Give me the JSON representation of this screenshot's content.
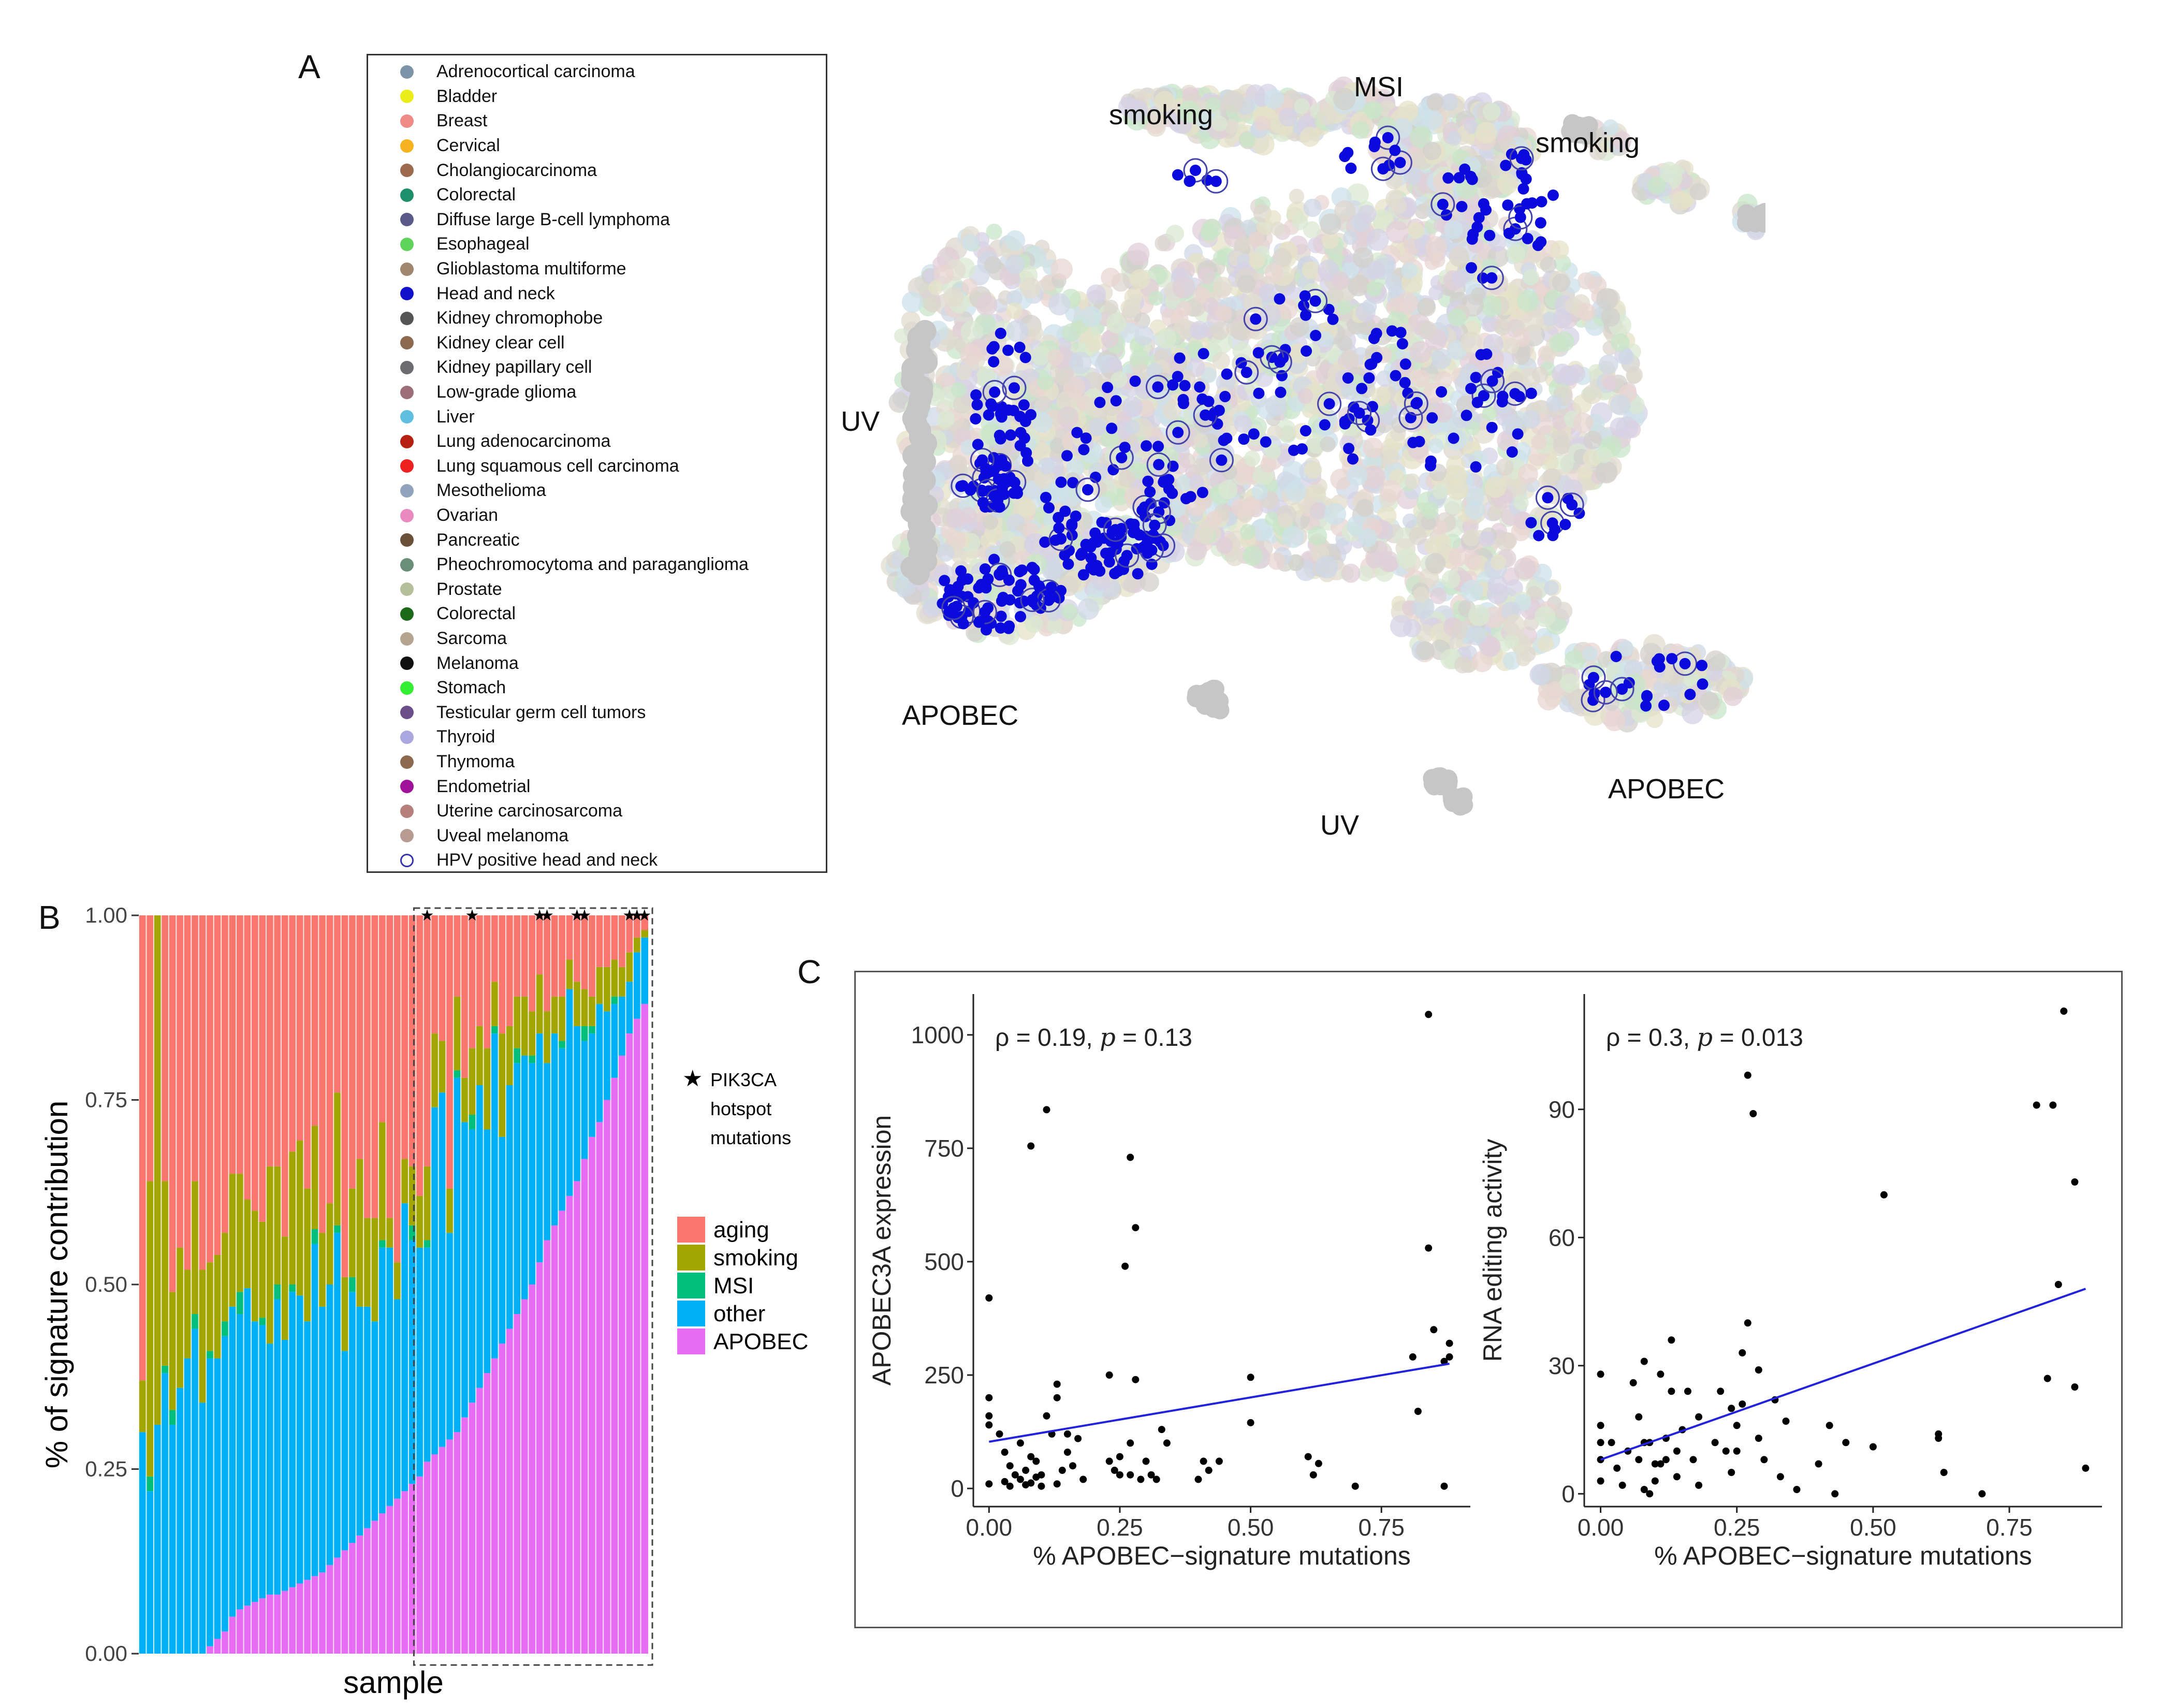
{
  "panels": {
    "a": "A",
    "b": "B",
    "c": "C"
  },
  "legend_a": {
    "items": [
      {
        "label": "Adrenocortical carcinoma",
        "color": "#7d93a8"
      },
      {
        "label": "Bladder",
        "color": "#ecec1a"
      },
      {
        "label": "Breast",
        "color": "#f08a84"
      },
      {
        "label": "Cervical",
        "color": "#f5b320"
      },
      {
        "label": "Cholangiocarcinoma",
        "color": "#9c6a4f"
      },
      {
        "label": "Colorectal",
        "color": "#1e8f6a"
      },
      {
        "label": "Diffuse large B-cell lymphoma",
        "color": "#5a5a88"
      },
      {
        "label": "Esophageal",
        "color": "#5fd35b"
      },
      {
        "label": "Glioblastoma multiforme",
        "color": "#a08770"
      },
      {
        "label": "Head and neck",
        "color": "#1111cc"
      },
      {
        "label": "Kidney chromophobe",
        "color": "#555555"
      },
      {
        "label": "Kidney clear cell",
        "color": "#8c6a50"
      },
      {
        "label": "Kidney papillary cell",
        "color": "#6b6b70"
      },
      {
        "label": "Low-grade glioma",
        "color": "#9c6e78"
      },
      {
        "label": "Liver",
        "color": "#5fbfe0"
      },
      {
        "label": "Lung adenocarcinoma",
        "color": "#b52010"
      },
      {
        "label": "Lung squamous cell carcinoma",
        "color": "#ee2020"
      },
      {
        "label": "Mesothelioma",
        "color": "#8fa3bc"
      },
      {
        "label": "Ovarian",
        "color": "#ea88c0"
      },
      {
        "label": "Pancreatic",
        "color": "#6a5038"
      },
      {
        "label": "Pheochromocytoma and paraganglioma",
        "color": "#6a8f78"
      },
      {
        "label": "Prostate",
        "color": "#b7bf9a"
      },
      {
        "label": "Colorectal",
        "color": "#1a6a1a"
      },
      {
        "label": "Sarcoma",
        "color": "#b5a590"
      },
      {
        "label": "Melanoma",
        "color": "#111111"
      },
      {
        "label": "Stomach",
        "color": "#33ee33"
      },
      {
        "label": "Testicular germ cell tumors",
        "color": "#6a4f8a"
      },
      {
        "label": "Thyroid",
        "color": "#aaa6de"
      },
      {
        "label": "Thymoma",
        "color": "#8c6a50"
      },
      {
        "label": "Endometrial",
        "color": "#a0129a"
      },
      {
        "label": "Uterine carcinosarcoma",
        "color": "#b57f7a"
      },
      {
        "label": "Uveal melanoma",
        "color": "#b89a92"
      },
      {
        "label": "HPV positive head and neck",
        "color": "#3333aa"
      }
    ]
  },
  "tsne_labels": {
    "smoking_left": "smoking",
    "msi": "MSI",
    "smoking_right": "smoking",
    "uv_left": "UV",
    "uv_bottom": "UV",
    "apobec_left": "APOBEC",
    "apobec_right": "APOBEC"
  },
  "colors": {
    "aging": "#f8766d",
    "smoking": "#a3a500",
    "msi": "#00bf7d",
    "other": "#00b0f6",
    "apobec": "#e76bf3",
    "hn_point": "#0a0adc",
    "regression": "#2222dd",
    "tsne_bg": "#d8d3cc",
    "uv_grey": "#c6c6c6"
  },
  "chart_data": [
    {
      "type": "bar",
      "stacked": true,
      "title": "",
      "xlabel": "sample",
      "ylabel": "% of signature contribution",
      "ylim": [
        0,
        1
      ],
      "y_ticks": [
        "0.00",
        "0.25",
        "0.50",
        "0.75",
        "1.00"
      ],
      "star_note": [
        "PIK3CA",
        "hotspot",
        "mutations"
      ],
      "star_symbol": "★",
      "series_names": [
        "aging",
        "smoking",
        "MSI",
        "other",
        "APOBEC"
      ],
      "n_samples": 68,
      "apobec": [
        0,
        0,
        0,
        0,
        0,
        0,
        0,
        0,
        0,
        0.01,
        0.02,
        0.03,
        0.05,
        0.06,
        0.065,
        0.07,
        0.075,
        0.08,
        0.08,
        0.085,
        0.09,
        0.095,
        0.1,
        0.105,
        0.11,
        0.12,
        0.13,
        0.14,
        0.15,
        0.16,
        0.17,
        0.18,
        0.19,
        0.2,
        0.21,
        0.22,
        0.23,
        0.24,
        0.26,
        0.27,
        0.28,
        0.29,
        0.3,
        0.32,
        0.34,
        0.36,
        0.38,
        0.4,
        0.42,
        0.44,
        0.46,
        0.48,
        0.5,
        0.53,
        0.56,
        0.58,
        0.6,
        0.62,
        0.64,
        0.67,
        0.7,
        0.72,
        0.75,
        0.78,
        0.81,
        0.84,
        0.86,
        0.88
      ],
      "other": [
        0.3,
        0.22,
        0.31,
        0.38,
        0.31,
        0.36,
        0.4,
        0.44,
        0.34,
        0.39,
        0.38,
        0.4,
        0.42,
        0.4,
        0.43,
        0.38,
        0.37,
        0.34,
        0.4,
        0.34,
        0.4,
        0.39,
        0.35,
        0.45,
        0.36,
        0.38,
        0.44,
        0.27,
        0.34,
        0.31,
        0.3,
        0.27,
        0.36,
        0.35,
        0.27,
        0.39,
        0.33,
        0.31,
        0.29,
        0.47,
        0.48,
        0.28,
        0.48,
        0.4,
        0.37,
        0.41,
        0.33,
        0.44,
        0.28,
        0.33,
        0.34,
        0.33,
        0.3,
        0.31,
        0.24,
        0.26,
        0.22,
        0.28,
        0.21,
        0.16,
        0.14,
        0.16,
        0.12,
        0.1,
        0.08,
        0.07,
        0.09,
        0.09
      ],
      "msi": [
        0,
        0.02,
        0,
        0.01,
        0.02,
        0,
        0,
        0.02,
        0,
        0.01,
        0,
        0.02,
        0,
        0.03,
        0,
        0,
        0.01,
        0,
        0.02,
        0,
        0.01,
        0,
        0,
        0.02,
        0,
        0,
        0.01,
        0,
        0.02,
        0,
        0,
        0,
        0.01,
        0,
        0,
        0,
        0.02,
        0,
        0.01,
        0,
        0,
        0,
        0.01,
        0,
        0.02,
        0,
        0,
        0.01,
        0,
        0,
        0.02,
        0,
        0.01,
        0,
        0,
        0,
        0.01,
        0,
        0,
        0.02,
        0.01,
        0,
        0,
        0.01,
        0,
        0,
        0,
        0
      ],
      "smoking": [
        0.07,
        0.4,
        0.69,
        0.25,
        0.16,
        0.19,
        0.12,
        0.18,
        0.18,
        0.12,
        0.14,
        0.12,
        0.18,
        0.16,
        0.12,
        0.15,
        0.13,
        0.24,
        0.16,
        0.14,
        0.18,
        0.21,
        0.18,
        0.14,
        0.1,
        0.11,
        0.18,
        0.1,
        0.12,
        0.2,
        0.12,
        0.14,
        0.16,
        0.04,
        0.05,
        0.06,
        0.08,
        0.07,
        0.1,
        0.1,
        0.07,
        0.06,
        0.1,
        0.06,
        0.09,
        0.08,
        0.11,
        0.06,
        0.14,
        0.08,
        0.07,
        0.08,
        0.06,
        0.08,
        0.07,
        0.05,
        0.06,
        0.04,
        0.06,
        0.05,
        0.04,
        0.05,
        0.06,
        0.05,
        0.04,
        0.04,
        0.02,
        0.01
      ],
      "pik3ca_star_samples": [
        38,
        44,
        53,
        54,
        58,
        59,
        65,
        66,
        67
      ],
      "dashed_box_from_sample": 37
    },
    {
      "type": "scatter",
      "title": "",
      "annotation": "ρ = 0.19, p = 0.13",
      "annotation_rho": "ρ = 0.19,",
      "annotation_p": "p",
      "annotation_pval": "= 0.13",
      "xlabel": "% APOBEC−signature mutations",
      "ylabel": "APOBEC3A expression",
      "xlim": [
        -0.03,
        0.92
      ],
      "ylim": [
        -40,
        1090
      ],
      "x_ticks": [
        0,
        0.25,
        0.5,
        0.75
      ],
      "x_tick_labels": [
        "0.00",
        "0.25",
        "0.50",
        "0.75"
      ],
      "y_ticks": [
        0,
        250,
        500,
        750,
        1000
      ],
      "y_tick_labels": [
        "0",
        "250",
        "500",
        "750",
        "1000"
      ],
      "fit": [
        [
          0,
          103
        ],
        [
          0.88,
          275
        ]
      ],
      "points": [
        [
          0.0,
          420
        ],
        [
          0.0,
          200
        ],
        [
          0.0,
          160
        ],
        [
          0.0,
          140
        ],
        [
          0.0,
          10
        ],
        [
          0.02,
          120
        ],
        [
          0.03,
          80
        ],
        [
          0.03,
          15
        ],
        [
          0.04,
          50
        ],
        [
          0.04,
          5
        ],
        [
          0.05,
          30
        ],
        [
          0.06,
          100
        ],
        [
          0.06,
          20
        ],
        [
          0.07,
          8
        ],
        [
          0.07,
          40
        ],
        [
          0.08,
          755
        ],
        [
          0.08,
          70
        ],
        [
          0.08,
          12
        ],
        [
          0.09,
          25
        ],
        [
          0.09,
          60
        ],
        [
          0.1,
          5
        ],
        [
          0.1,
          30
        ],
        [
          0.11,
          835
        ],
        [
          0.11,
          160
        ],
        [
          0.12,
          120
        ],
        [
          0.13,
          230
        ],
        [
          0.13,
          200
        ],
        [
          0.13,
          10
        ],
        [
          0.14,
          40
        ],
        [
          0.15,
          120
        ],
        [
          0.15,
          80
        ],
        [
          0.16,
          50
        ],
        [
          0.17,
          110
        ],
        [
          0.18,
          20
        ],
        [
          0.23,
          60
        ],
        [
          0.23,
          250
        ],
        [
          0.24,
          40
        ],
        [
          0.25,
          70
        ],
        [
          0.25,
          30
        ],
        [
          0.26,
          490
        ],
        [
          0.27,
          730
        ],
        [
          0.27,
          100
        ],
        [
          0.27,
          30
        ],
        [
          0.28,
          575
        ],
        [
          0.28,
          240
        ],
        [
          0.29,
          20
        ],
        [
          0.3,
          60
        ],
        [
          0.31,
          30
        ],
        [
          0.32,
          20
        ],
        [
          0.33,
          130
        ],
        [
          0.34,
          100
        ],
        [
          0.4,
          20
        ],
        [
          0.41,
          60
        ],
        [
          0.42,
          40
        ],
        [
          0.44,
          60
        ],
        [
          0.5,
          145
        ],
        [
          0.5,
          245
        ],
        [
          0.61,
          70
        ],
        [
          0.62,
          30
        ],
        [
          0.63,
          55
        ],
        [
          0.7,
          5
        ],
        [
          0.81,
          290
        ],
        [
          0.82,
          170
        ],
        [
          0.84,
          1045
        ],
        [
          0.84,
          530
        ],
        [
          0.85,
          350
        ],
        [
          0.87,
          280
        ],
        [
          0.87,
          5
        ],
        [
          0.88,
          320
        ],
        [
          0.88,
          290
        ]
      ]
    },
    {
      "type": "scatter",
      "title": "",
      "annotation": "ρ = 0.3, p = 0.013",
      "annotation_rho": "ρ = 0.3,",
      "annotation_p": "p",
      "annotation_pval": "= 0.013",
      "xlabel": "% APOBEC−signature mutations",
      "ylabel": "RNA editing activity",
      "xlim": [
        -0.03,
        0.92
      ],
      "ylim": [
        -3,
        117
      ],
      "x_ticks": [
        0,
        0.25,
        0.5,
        0.75
      ],
      "x_tick_labels": [
        "0.00",
        "0.25",
        "0.50",
        "0.75"
      ],
      "y_ticks": [
        0,
        30,
        60,
        90
      ],
      "y_tick_labels": [
        "0",
        "30",
        "60",
        "90"
      ],
      "fit": [
        [
          0,
          8
        ],
        [
          0.89,
          48
        ]
      ],
      "points": [
        [
          0.0,
          28
        ],
        [
          0.0,
          16
        ],
        [
          0.0,
          12
        ],
        [
          0.0,
          8
        ],
        [
          0.0,
          3
        ],
        [
          0.02,
          12
        ],
        [
          0.03,
          6
        ],
        [
          0.04,
          2
        ],
        [
          0.05,
          10
        ],
        [
          0.06,
          26
        ],
        [
          0.07,
          8
        ],
        [
          0.07,
          18
        ],
        [
          0.08,
          12
        ],
        [
          0.08,
          1
        ],
        [
          0.08,
          31
        ],
        [
          0.09,
          12
        ],
        [
          0.09,
          0
        ],
        [
          0.1,
          7
        ],
        [
          0.1,
          3
        ],
        [
          0.11,
          7
        ],
        [
          0.11,
          28
        ],
        [
          0.12,
          8
        ],
        [
          0.12,
          13
        ],
        [
          0.13,
          36
        ],
        [
          0.13,
          24
        ],
        [
          0.14,
          4
        ],
        [
          0.14,
          10
        ],
        [
          0.15,
          15
        ],
        [
          0.16,
          24
        ],
        [
          0.17,
          8
        ],
        [
          0.18,
          18
        ],
        [
          0.18,
          2
        ],
        [
          0.21,
          12
        ],
        [
          0.22,
          24
        ],
        [
          0.23,
          10
        ],
        [
          0.24,
          5
        ],
        [
          0.24,
          20
        ],
        [
          0.25,
          10
        ],
        [
          0.25,
          16
        ],
        [
          0.26,
          21
        ],
        [
          0.26,
          33
        ],
        [
          0.27,
          40
        ],
        [
          0.27,
          98
        ],
        [
          0.28,
          89
        ],
        [
          0.29,
          29
        ],
        [
          0.29,
          13
        ],
        [
          0.3,
          8
        ],
        [
          0.32,
          22
        ],
        [
          0.33,
          4
        ],
        [
          0.34,
          17
        ],
        [
          0.36,
          1
        ],
        [
          0.4,
          7
        ],
        [
          0.42,
          16
        ],
        [
          0.43,
          0
        ],
        [
          0.45,
          12
        ],
        [
          0.5,
          11
        ],
        [
          0.52,
          70
        ],
        [
          0.62,
          14
        ],
        [
          0.62,
          13
        ],
        [
          0.63,
          5
        ],
        [
          0.7,
          0
        ],
        [
          0.8,
          91
        ],
        [
          0.82,
          27
        ],
        [
          0.83,
          91
        ],
        [
          0.84,
          49
        ],
        [
          0.85,
          113
        ],
        [
          0.87,
          25
        ],
        [
          0.87,
          73
        ],
        [
          0.89,
          6
        ]
      ]
    }
  ]
}
